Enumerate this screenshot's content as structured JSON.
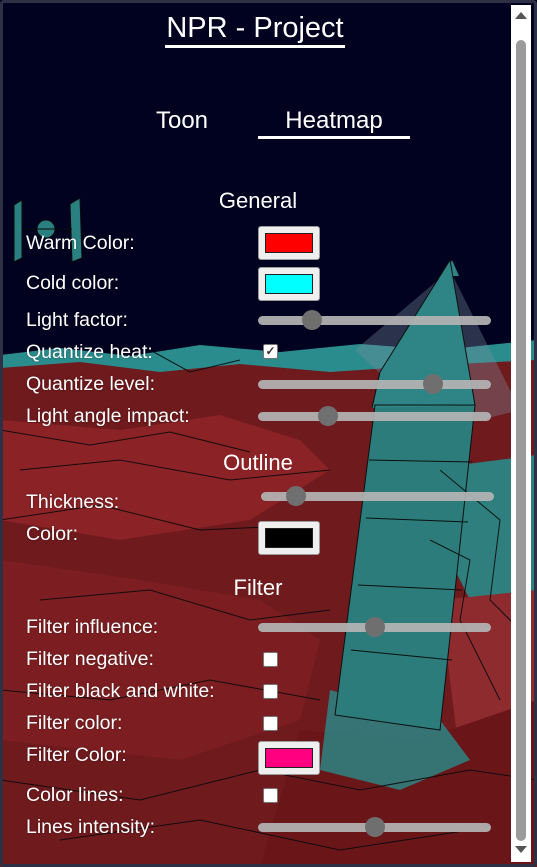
{
  "title": "NPR - Project",
  "tabs": [
    {
      "label": "Toon",
      "active": false
    },
    {
      "label": "Heatmap",
      "active": true
    }
  ],
  "general": {
    "heading": "General",
    "warm_color": {
      "label": "Warm Color:",
      "value": "#ff0000"
    },
    "cold_color": {
      "label": "Cold color:",
      "value": "#00ffff"
    },
    "light_factor": {
      "label": "Light factor:",
      "value": 0.23
    },
    "quantize_heat": {
      "label": "Quantize heat:",
      "checked": true
    },
    "quantize_level": {
      "label": "Quantize level:",
      "value": 0.75
    },
    "light_angle_impact": {
      "label": "Light angle impact:",
      "value": 0.3
    }
  },
  "outline": {
    "heading": "Outline",
    "thickness": {
      "label": "Thickness:",
      "value": 0.15
    },
    "color": {
      "label": "Color:",
      "value": "#000000"
    }
  },
  "filter": {
    "heading": "Filter",
    "influence": {
      "label": "Filter influence:",
      "value": 0.5
    },
    "negative": {
      "label": "Filter negative:",
      "checked": false
    },
    "black_white": {
      "label": "Filter black and white:",
      "checked": false
    },
    "color_toggle": {
      "label": "Filter color:",
      "checked": false
    },
    "filter_color": {
      "label": "Filter Color:",
      "value": "#ff0080"
    },
    "color_lines": {
      "label": "Color lines:",
      "checked": false
    },
    "lines_intensity": {
      "label": "Lines intensity:",
      "value": 0.5
    }
  },
  "colors": {
    "scene_sky": "#01021f",
    "scene_ground": "#7a1c1f",
    "scene_cyan": "#2b8f8f"
  }
}
